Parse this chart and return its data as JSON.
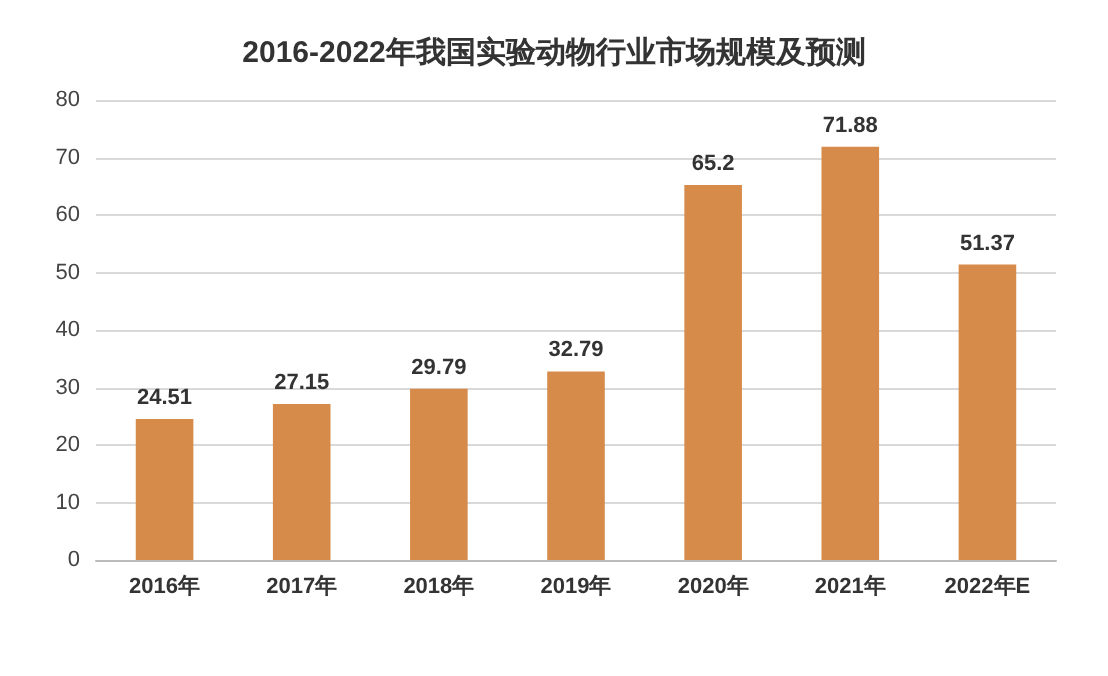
{
  "chart_data": {
    "type": "bar",
    "title": "2016-2022年我国实验动物行业市场规模及预测",
    "categories": [
      "2016年",
      "2017年",
      "2018年",
      "2019年",
      "2020年",
      "2021年",
      "2022年E"
    ],
    "values": [
      24.51,
      27.15,
      29.79,
      32.79,
      65.2,
      71.88,
      51.37
    ],
    "color": "#d68b4b",
    "ylim": [
      0,
      80
    ],
    "yticks": [
      0,
      10,
      20,
      30,
      40,
      50,
      60,
      70,
      80
    ],
    "grid": "y",
    "data_labels": true
  }
}
